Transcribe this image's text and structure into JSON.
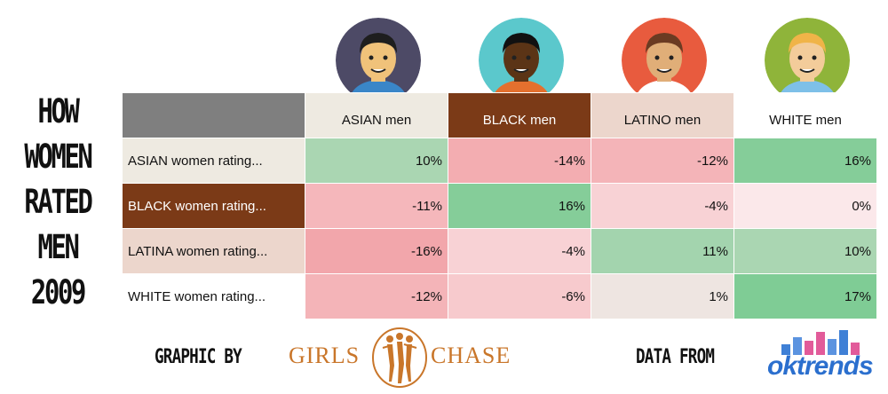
{
  "side_title": [
    "HOW",
    "WOMEN",
    "RATED",
    "MEN",
    "2009"
  ],
  "chart_data": {
    "type": "heatmap",
    "title": "HOW WOMEN RATED MEN 2009",
    "columns": [
      "ASIAN men",
      "BLACK men",
      "LATINO men",
      "WHITE men"
    ],
    "rows": [
      {
        "label": "ASIAN women rating...",
        "values": [
          10,
          -14,
          -12,
          16
        ],
        "display": [
          "10%",
          "-14%",
          "-12%",
          "16%"
        ]
      },
      {
        "label": "BLACK women rating...",
        "values": [
          -11,
          16,
          -4,
          0
        ],
        "display": [
          "-11%",
          "16%",
          "-4%",
          "0%"
        ]
      },
      {
        "label": "LATINA women rating...",
        "values": [
          -16,
          -4,
          11,
          10
        ],
        "display": [
          "-16%",
          "-4%",
          "11%",
          "10%"
        ]
      },
      {
        "label": "WHITE women rating...",
        "values": [
          -12,
          -6,
          1,
          17
        ],
        "display": [
          "-12%",
          "-6%",
          "1%",
          "17%"
        ]
      }
    ],
    "unit": "%",
    "color_scale": {
      "negative": "#f2a3a8",
      "zero": "#fbe8ea",
      "positive": "#7fcc95"
    }
  },
  "header_colors": {
    "columns": [
      "#eeeae1",
      "#7b3a17",
      "#ecd6cc",
      "#ffffff"
    ],
    "column_text": [
      "#111111",
      "#ffffff",
      "#111111",
      "#111111"
    ],
    "rows": [
      "#eeeae1",
      "#7b3a17",
      "#ecd6cc",
      "#ffffff"
    ],
    "row_text": [
      "#111111",
      "#ffffff",
      "#111111",
      "#111111"
    ]
  },
  "avatars": [
    {
      "name": "asian-man-avatar",
      "bg": "#4d4a66",
      "skin": "#f0c27a",
      "hair": "#1e1e1e",
      "shirt": "#3a86c8"
    },
    {
      "name": "black-man-avatar",
      "bg": "#5bc8cc",
      "skin": "#5b3416",
      "hair": "#111111",
      "shirt": "#e4702e"
    },
    {
      "name": "latino-man-avatar",
      "bg": "#e85b3e",
      "skin": "#e0ae78",
      "hair": "#6b3b22",
      "shirt": "#ffffff"
    },
    {
      "name": "white-man-avatar",
      "bg": "#8fb43a",
      "skin": "#f3cc9a",
      "hair": "#f0b448",
      "shirt": "#7ec0e8"
    }
  ],
  "footer": {
    "graphic_by": "GRAPHIC BY",
    "girls_chase_left": "GIRLS",
    "girls_chase_right": "CHASE",
    "data_from": "DATA FROM",
    "oktrends": "oktrends"
  }
}
